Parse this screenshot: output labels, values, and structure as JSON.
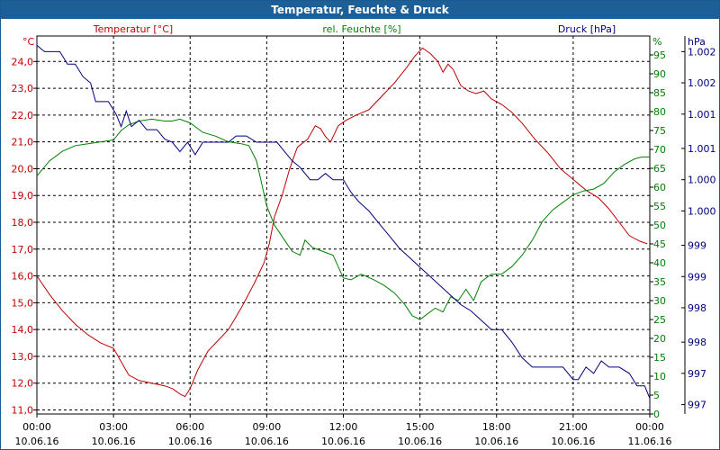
{
  "chart_data": {
    "type": "line",
    "title": "Temperatur, Feuchte & Druck",
    "x_ticks": [
      {
        "time": "00:00",
        "date": "10.06.16"
      },
      {
        "time": "03:00",
        "date": "10.06.16"
      },
      {
        "time": "06:00",
        "date": "10.06.16"
      },
      {
        "time": "09:00",
        "date": "10.06.16"
      },
      {
        "time": "12:00",
        "date": "10.06.16"
      },
      {
        "time": "15:00",
        "date": "10.06.16"
      },
      {
        "time": "18:00",
        "date": "10.06.16"
      },
      {
        "time": "21:00",
        "date": "10.06.16"
      },
      {
        "time": "00:00",
        "date": "11.06.16"
      }
    ],
    "xlim": [
      0,
      24
    ],
    "axes": {
      "temperature": {
        "label": "Temperatur [°C]",
        "unit": "°C",
        "color": "#c00000",
        "ylim": [
          10.85,
          24.95
        ],
        "ticks": [
          "24,0",
          "23,0",
          "22,0",
          "21,0",
          "20,0",
          "19,0",
          "18,0",
          "17,0",
          "16,0",
          "15,0",
          "14,0",
          "13,0",
          "12,0",
          "11,0"
        ],
        "tick_values": [
          24,
          23,
          22,
          21,
          20,
          19,
          18,
          17,
          16,
          15,
          14,
          13,
          12,
          11
        ]
      },
      "humidity": {
        "label": "rel. Feuchte [%]",
        "unit": "%",
        "color": "#008000",
        "ylim": [
          0,
          100
        ],
        "ticks": [
          "95",
          "90",
          "85",
          "80",
          "75",
          "70",
          "65",
          "60",
          "55",
          "50",
          "45",
          "40",
          "35",
          "30",
          "25",
          "20",
          "15",
          "10",
          "5",
          "0"
        ],
        "tick_values": [
          95,
          90,
          85,
          80,
          75,
          70,
          65,
          60,
          55,
          50,
          45,
          40,
          35,
          30,
          25,
          20,
          15,
          10,
          5,
          0
        ]
      },
      "pressure": {
        "label": "Druck [hPa]",
        "unit": "hPa",
        "color": "#000080",
        "ylim": [
          996.6,
          1002.65
        ],
        "ticks": [
          "1.002",
          "1.002",
          "1.001",
          "1.001",
          "1.000",
          "1.000",
          "999",
          "999",
          "998",
          "998",
          "997",
          "997"
        ],
        "tick_values": [
          1002.4,
          1001.9,
          1001.4,
          1000.85,
          1000.35,
          999.85,
          999.3,
          998.8,
          998.3,
          997.75,
          997.25,
          996.75
        ]
      }
    },
    "series": [
      {
        "name": "Temperatur [°C]",
        "axis": "temperature",
        "color": "#c00000",
        "points": [
          [
            0,
            16.0
          ],
          [
            0.5,
            15.3
          ],
          [
            1,
            14.7
          ],
          [
            1.5,
            14.2
          ],
          [
            2,
            13.8
          ],
          [
            2.5,
            13.5
          ],
          [
            3,
            13.3
          ],
          [
            3.3,
            12.8
          ],
          [
            3.6,
            12.3
          ],
          [
            4,
            12.1
          ],
          [
            4.5,
            12.0
          ],
          [
            5,
            11.9
          ],
          [
            5.3,
            11.8
          ],
          [
            5.6,
            11.6
          ],
          [
            5.8,
            11.5
          ],
          [
            6,
            11.8
          ],
          [
            6.3,
            12.5
          ],
          [
            6.7,
            13.2
          ],
          [
            7,
            13.5
          ],
          [
            7.5,
            14.0
          ],
          [
            8,
            14.8
          ],
          [
            8.5,
            15.7
          ],
          [
            8.9,
            16.5
          ],
          [
            9.1,
            17.2
          ],
          [
            9.3,
            18.2
          ],
          [
            9.6,
            19.0
          ],
          [
            9.9,
            20.0
          ],
          [
            10.2,
            20.8
          ],
          [
            10.6,
            21.1
          ],
          [
            10.9,
            21.6
          ],
          [
            11.1,
            21.5
          ],
          [
            11.3,
            21.2
          ],
          [
            11.5,
            21.0
          ],
          [
            11.8,
            21.6
          ],
          [
            12.1,
            21.8
          ],
          [
            12.5,
            22.0
          ],
          [
            13,
            22.2
          ],
          [
            13.5,
            22.7
          ],
          [
            14,
            23.2
          ],
          [
            14.5,
            23.8
          ],
          [
            14.8,
            24.2
          ],
          [
            15.1,
            24.5
          ],
          [
            15.4,
            24.3
          ],
          [
            15.7,
            24.0
          ],
          [
            15.9,
            23.6
          ],
          [
            16.1,
            23.9
          ],
          [
            16.3,
            23.7
          ],
          [
            16.6,
            23.1
          ],
          [
            16.9,
            22.9
          ],
          [
            17.2,
            22.8
          ],
          [
            17.5,
            22.9
          ],
          [
            17.8,
            22.6
          ],
          [
            18.2,
            22.4
          ],
          [
            18.6,
            22.1
          ],
          [
            19,
            21.7
          ],
          [
            19.5,
            21.1
          ],
          [
            20,
            20.6
          ],
          [
            20.5,
            20.0
          ],
          [
            21,
            19.6
          ],
          [
            21.5,
            19.2
          ],
          [
            22,
            18.9
          ],
          [
            22.4,
            18.5
          ],
          [
            22.8,
            18.0
          ],
          [
            23.2,
            17.5
          ],
          [
            23.6,
            17.3
          ],
          [
            23.9,
            17.2
          ]
        ]
      },
      {
        "name": "rel. Feuchte [%]",
        "axis": "humidity",
        "color": "#008000",
        "points": [
          [
            0,
            63
          ],
          [
            0.5,
            67
          ],
          [
            1,
            69.5
          ],
          [
            1.5,
            71
          ],
          [
            2,
            71.5
          ],
          [
            2.5,
            72
          ],
          [
            3,
            72.5
          ],
          [
            3.3,
            75
          ],
          [
            3.6,
            76.5
          ],
          [
            4,
            77.5
          ],
          [
            4.5,
            78
          ],
          [
            5,
            77.5
          ],
          [
            5.3,
            77.5
          ],
          [
            5.6,
            78
          ],
          [
            6,
            77
          ],
          [
            6.5,
            74.5
          ],
          [
            7,
            73.5
          ],
          [
            7.5,
            72
          ],
          [
            8,
            71.5
          ],
          [
            8.3,
            71
          ],
          [
            8.6,
            67
          ],
          [
            8.8,
            61
          ],
          [
            9,
            55
          ],
          [
            9.3,
            50
          ],
          [
            9.7,
            46
          ],
          [
            10,
            43
          ],
          [
            10.3,
            42
          ],
          [
            10.5,
            46
          ],
          [
            10.8,
            44
          ],
          [
            11.2,
            43
          ],
          [
            11.6,
            42
          ],
          [
            12,
            36
          ],
          [
            12.3,
            35.5
          ],
          [
            12.7,
            37
          ],
          [
            13.2,
            35.5
          ],
          [
            13.6,
            34
          ],
          [
            14,
            32
          ],
          [
            14.4,
            29
          ],
          [
            14.7,
            26
          ],
          [
            15,
            25
          ],
          [
            15.3,
            26.5
          ],
          [
            15.6,
            28
          ],
          [
            15.9,
            27
          ],
          [
            16.2,
            31
          ],
          [
            16.5,
            30
          ],
          [
            16.8,
            33
          ],
          [
            17.1,
            30
          ],
          [
            17.4,
            35
          ],
          [
            17.8,
            37
          ],
          [
            18.2,
            37
          ],
          [
            18.6,
            39
          ],
          [
            19,
            42
          ],
          [
            19.4,
            46
          ],
          [
            19.8,
            51
          ],
          [
            20.2,
            54
          ],
          [
            20.6,
            56
          ],
          [
            21,
            58
          ],
          [
            21.4,
            59
          ],
          [
            21.8,
            59.5
          ],
          [
            22.2,
            61
          ],
          [
            22.6,
            64
          ],
          [
            23,
            66
          ],
          [
            23.4,
            67.5
          ],
          [
            23.7,
            68
          ],
          [
            24,
            68
          ]
        ]
      },
      {
        "name": "Druck [hPa]",
        "axis": "pressure",
        "color": "#000080",
        "points": [
          [
            0,
            1002.5
          ],
          [
            0.3,
            1002.4
          ],
          [
            0.9,
            1002.4
          ],
          [
            1.2,
            1002.2
          ],
          [
            1.5,
            1002.2
          ],
          [
            1.8,
            1002.0
          ],
          [
            2.1,
            1001.9
          ],
          [
            2.3,
            1001.6
          ],
          [
            2.8,
            1001.6
          ],
          [
            3.1,
            1001.4
          ],
          [
            3.3,
            1001.2
          ],
          [
            3.5,
            1001.45
          ],
          [
            3.7,
            1001.2
          ],
          [
            4,
            1001.3
          ],
          [
            4.3,
            1001.15
          ],
          [
            4.7,
            1001.15
          ],
          [
            5,
            1001.0
          ],
          [
            5.3,
            1000.95
          ],
          [
            5.6,
            1000.8
          ],
          [
            5.9,
            1000.95
          ],
          [
            6.2,
            1000.75
          ],
          [
            6.5,
            1000.95
          ],
          [
            7,
            1000.95
          ],
          [
            7.5,
            1000.95
          ],
          [
            7.8,
            1001.05
          ],
          [
            8.2,
            1001.05
          ],
          [
            8.6,
            1000.95
          ],
          [
            9,
            1000.95
          ],
          [
            9.4,
            1000.95
          ],
          [
            9.7,
            1000.8
          ],
          [
            10,
            1000.65
          ],
          [
            10.3,
            1000.55
          ],
          [
            10.7,
            1000.35
          ],
          [
            11,
            1000.35
          ],
          [
            11.3,
            1000.45
          ],
          [
            11.6,
            1000.35
          ],
          [
            12,
            1000.35
          ],
          [
            12.3,
            1000.15
          ],
          [
            12.6,
            1000.0
          ],
          [
            13,
            999.85
          ],
          [
            13.4,
            999.65
          ],
          [
            13.8,
            999.45
          ],
          [
            14.2,
            999.25
          ],
          [
            14.6,
            999.1
          ],
          [
            15,
            998.95
          ],
          [
            15.4,
            998.8
          ],
          [
            15.8,
            998.65
          ],
          [
            16.2,
            998.5
          ],
          [
            16.6,
            998.35
          ],
          [
            17,
            998.25
          ],
          [
            17.4,
            998.1
          ],
          [
            17.8,
            997.95
          ],
          [
            18.2,
            997.95
          ],
          [
            18.6,
            997.75
          ],
          [
            19,
            997.5
          ],
          [
            19.4,
            997.35
          ],
          [
            19.8,
            997.35
          ],
          [
            20.2,
            997.35
          ],
          [
            20.6,
            997.35
          ],
          [
            21,
            997.15
          ],
          [
            21.2,
            997.15
          ],
          [
            21.5,
            997.35
          ],
          [
            21.8,
            997.25
          ],
          [
            22.1,
            997.45
          ],
          [
            22.4,
            997.35
          ],
          [
            22.8,
            997.35
          ],
          [
            23.2,
            997.25
          ],
          [
            23.5,
            997.05
          ],
          [
            23.8,
            997.05
          ],
          [
            24,
            996.85
          ]
        ]
      }
    ]
  }
}
